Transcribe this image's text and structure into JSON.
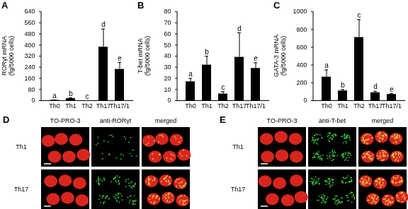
{
  "chart_data": [
    {
      "type": "bar",
      "title": "A",
      "ylabel": [
        "RORγt mRNA",
        "(fg/5000 cells)"
      ],
      "categories": [
        "Th0",
        "Th1",
        "Th2",
        "Th17",
        "Th17/1"
      ],
      "values": [
        3,
        15,
        0,
        385,
        225
      ],
      "errors": [
        2,
        6,
        0,
        130,
        50
      ],
      "annotations": [
        "a",
        "b",
        "c",
        "d",
        "e"
      ],
      "color": "#000000",
      "ylim": [
        0,
        640
      ],
      "yticks": [
        0,
        80,
        160,
        240,
        320,
        400,
        480,
        560,
        640
      ]
    },
    {
      "type": "bar",
      "title": "B",
      "ylabel": [
        "T-bet mRNA",
        "(fg/5000 cells)"
      ],
      "categories": [
        "Th0",
        "Th1",
        "Th2",
        "Th17",
        "Th17/1"
      ],
      "values": [
        17,
        32,
        6,
        39,
        29
      ],
      "errors": [
        3,
        8,
        2,
        22,
        5
      ],
      "annotations": [
        "a",
        "b",
        "c",
        "d",
        "e"
      ],
      "color": "#000000",
      "ylim": [
        0,
        80
      ],
      "yticks": [
        0,
        10,
        20,
        30,
        40,
        50,
        60,
        70,
        80
      ]
    },
    {
      "type": "bar",
      "title": "C",
      "ylabel": [
        "GATA-3 mRNA",
        "(fg/5000 cells)"
      ],
      "categories": [
        "Th0",
        "Th1",
        "Th2",
        "Th17",
        "Th17/1"
      ],
      "values": [
        265,
        110,
        710,
        90,
        70
      ],
      "errors": [
        80,
        15,
        200,
        15,
        10
      ],
      "annotations": [
        "a",
        "b",
        "c",
        "d",
        "e"
      ],
      "color": "#000000",
      "ylim": [
        0,
        1000
      ],
      "yticks": [
        0,
        200,
        400,
        600,
        800,
        1000
      ]
    }
  ],
  "images": [
    {
      "title": "D",
      "columns": [
        "TO-PRO-3",
        "anti-RORγt",
        "merged"
      ],
      "rows": [
        "Th1",
        "Th17"
      ]
    },
    {
      "title": "E",
      "columns": [
        "TO-PRO-3",
        "anti-T-bet",
        "merged"
      ],
      "rows": [
        "Th1",
        "Th17"
      ]
    }
  ]
}
